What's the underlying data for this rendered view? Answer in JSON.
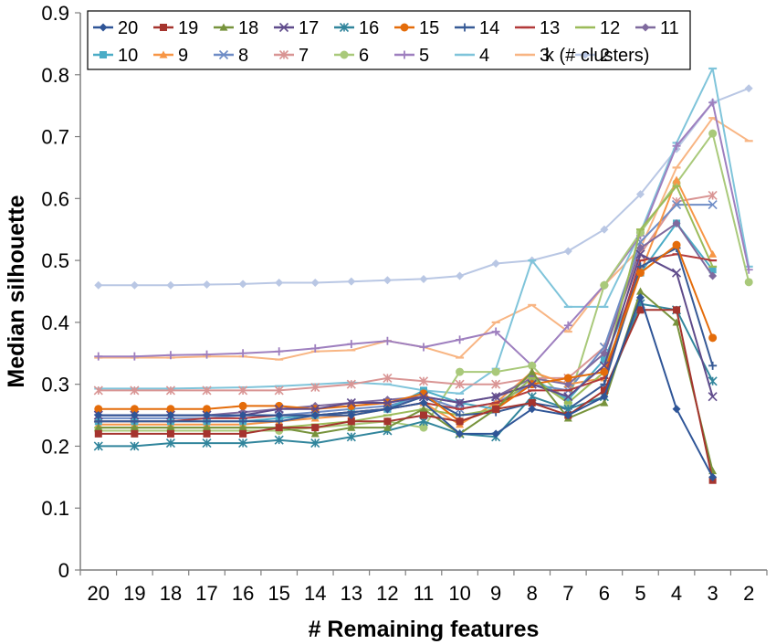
{
  "chart_data": {
    "type": "line",
    "xlabel": "# Remaining features",
    "ylabel": "Median silhouette",
    "ylim": [
      0,
      0.9
    ],
    "yticks": [
      "0",
      "0.1",
      "0.2",
      "0.3",
      "0.4",
      "0.5",
      "0.6",
      "0.7",
      "0.8",
      "0.9"
    ],
    "categories": [
      "20",
      "19",
      "18",
      "17",
      "16",
      "15",
      "14",
      "13",
      "12",
      "11",
      "10",
      "9",
      "8",
      "7",
      "6",
      "5",
      "4",
      "3",
      "2"
    ],
    "grid": false,
    "legend_position": "top-left",
    "legend_title": "k (# clusters)",
    "series": [
      {
        "name": "20",
        "color": "#2F5597",
        "marker": "diamond",
        "values": [
          0.25,
          0.25,
          0.25,
          0.25,
          0.25,
          0.25,
          0.25,
          0.25,
          0.26,
          0.27,
          0.22,
          0.22,
          0.26,
          0.25,
          0.28,
          0.44,
          0.26,
          0.15,
          null
        ]
      },
      {
        "name": "19",
        "color": "#A5342E",
        "marker": "square",
        "values": [
          0.22,
          0.22,
          0.22,
          0.22,
          0.22,
          0.23,
          0.23,
          0.24,
          0.24,
          0.25,
          0.24,
          0.26,
          0.27,
          0.25,
          0.29,
          0.42,
          0.42,
          0.145,
          null
        ]
      },
      {
        "name": "18",
        "color": "#77933C",
        "marker": "triangle",
        "values": [
          0.23,
          0.23,
          0.23,
          0.23,
          0.23,
          0.23,
          0.22,
          0.23,
          0.23,
          0.26,
          0.22,
          0.26,
          0.32,
          0.245,
          0.27,
          0.45,
          0.4,
          0.16,
          null
        ]
      },
      {
        "name": "17",
        "color": "#5F4B8B",
        "marker": "x",
        "values": [
          0.25,
          0.25,
          0.25,
          0.25,
          0.25,
          0.26,
          0.26,
          0.27,
          0.27,
          0.28,
          0.27,
          0.28,
          0.3,
          0.28,
          0.33,
          0.51,
          0.48,
          0.28,
          null
        ]
      },
      {
        "name": "16",
        "color": "#31859C",
        "marker": "asterisk",
        "values": [
          0.2,
          0.2,
          0.205,
          0.205,
          0.205,
          0.21,
          0.205,
          0.215,
          0.225,
          0.24,
          0.22,
          0.215,
          0.28,
          0.26,
          0.28,
          0.43,
          0.42,
          0.305,
          null
        ]
      },
      {
        "name": "15",
        "color": "#E46C0A",
        "marker": "circle",
        "values": [
          0.26,
          0.26,
          0.26,
          0.26,
          0.265,
          0.265,
          0.26,
          0.265,
          0.27,
          0.285,
          0.24,
          0.26,
          0.3,
          0.31,
          0.32,
          0.48,
          0.525,
          0.375,
          null
        ]
      },
      {
        "name": "14",
        "color": "#375A96",
        "marker": "plus",
        "values": [
          0.24,
          0.24,
          0.24,
          0.24,
          0.24,
          0.24,
          0.25,
          0.255,
          0.26,
          0.28,
          0.25,
          0.255,
          0.27,
          0.26,
          0.3,
          0.49,
          0.52,
          0.33,
          null
        ]
      },
      {
        "name": "13",
        "color": "#B23A3A",
        "marker": "dash",
        "values": [
          0.24,
          0.24,
          0.24,
          0.245,
          0.245,
          0.25,
          0.25,
          0.255,
          0.26,
          0.27,
          0.26,
          0.27,
          0.29,
          0.29,
          0.31,
          0.5,
          0.51,
          0.5,
          null
        ]
      },
      {
        "name": "12",
        "color": "#9BBB59",
        "marker": "dash",
        "values": [
          0.23,
          0.23,
          0.23,
          0.23,
          0.23,
          0.23,
          0.235,
          0.24,
          0.25,
          0.26,
          0.25,
          0.26,
          0.31,
          0.27,
          0.32,
          0.55,
          0.62,
          0.49,
          null
        ]
      },
      {
        "name": "11",
        "color": "#7F6A9E",
        "marker": "diamond",
        "values": [
          0.25,
          0.25,
          0.25,
          0.25,
          0.255,
          0.26,
          0.265,
          0.27,
          0.275,
          0.28,
          0.27,
          0.28,
          0.31,
          0.3,
          0.35,
          0.52,
          0.56,
          0.475,
          null
        ]
      },
      {
        "name": "10",
        "color": "#4BACC6",
        "marker": "square",
        "values": [
          0.24,
          0.24,
          0.24,
          0.24,
          0.24,
          0.245,
          0.25,
          0.255,
          0.26,
          0.29,
          0.27,
          0.26,
          0.31,
          0.275,
          0.34,
          0.48,
          0.56,
          0.485,
          null
        ]
      },
      {
        "name": "9",
        "color": "#F79646",
        "marker": "triangle",
        "values": [
          0.235,
          0.235,
          0.235,
          0.235,
          0.235,
          0.24,
          0.245,
          0.25,
          0.26,
          0.27,
          0.235,
          0.27,
          0.32,
          0.3,
          0.31,
          0.48,
          0.63,
          0.51,
          null
        ]
      },
      {
        "name": "8",
        "color": "#6E8CC6",
        "marker": "x",
        "values": [
          0.245,
          0.245,
          0.245,
          0.245,
          0.25,
          0.25,
          0.255,
          0.26,
          0.265,
          0.28,
          0.26,
          0.27,
          0.3,
          0.29,
          0.36,
          0.53,
          0.59,
          0.59,
          null
        ]
      },
      {
        "name": "7",
        "color": "#D99594",
        "marker": "asterisk",
        "values": [
          0.29,
          0.29,
          0.29,
          0.29,
          0.29,
          0.29,
          0.295,
          0.3,
          0.31,
          0.305,
          0.3,
          0.3,
          0.31,
          0.31,
          0.36,
          0.51,
          0.595,
          0.605,
          null
        ]
      },
      {
        "name": "6",
        "color": "#A9C97A",
        "marker": "circle",
        "values": [
          0.225,
          0.225,
          0.225,
          0.225,
          0.225,
          0.225,
          0.23,
          0.235,
          0.24,
          0.23,
          0.32,
          0.32,
          0.33,
          0.27,
          0.46,
          0.545,
          0.625,
          0.705,
          0.465
        ]
      },
      {
        "name": "5",
        "color": "#9E7FBF",
        "marker": "plus",
        "values": [
          0.345,
          0.345,
          0.347,
          0.348,
          0.35,
          0.353,
          0.358,
          0.365,
          0.37,
          0.36,
          0.372,
          0.385,
          0.33,
          0.395,
          0.46,
          0.54,
          0.685,
          0.755,
          0.485
        ]
      },
      {
        "name": "4",
        "color": "#7FC4DA",
        "marker": "dash",
        "values": [
          0.293,
          0.293,
          0.293,
          0.294,
          0.295,
          0.297,
          0.3,
          0.303,
          0.3,
          0.29,
          0.285,
          0.325,
          0.5,
          0.425,
          0.425,
          0.545,
          0.69,
          0.81,
          0.49
        ]
      },
      {
        "name": "3",
        "color": "#F8B583",
        "marker": "dash",
        "values": [
          0.343,
          0.343,
          0.343,
          0.345,
          0.345,
          0.34,
          0.353,
          0.355,
          0.37,
          0.36,
          0.343,
          0.4,
          0.428,
          0.385,
          0.46,
          0.52,
          0.65,
          0.73,
          0.693
        ]
      },
      {
        "name": "2",
        "color": "#B9C7E4",
        "marker": "diamond",
        "values": [
          0.46,
          0.46,
          0.46,
          0.461,
          0.462,
          0.464,
          0.464,
          0.466,
          0.468,
          0.47,
          0.475,
          0.495,
          0.5,
          0.515,
          0.55,
          0.607,
          0.68,
          0.755,
          0.778
        ]
      }
    ]
  }
}
